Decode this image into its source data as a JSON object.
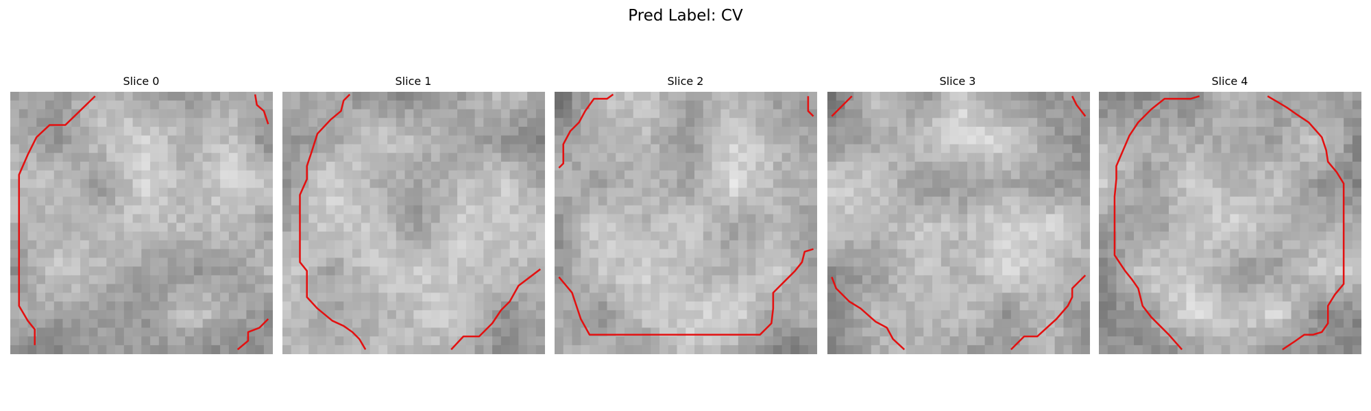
{
  "title": "Pred Label: CV",
  "slices": [
    "Slice 0",
    "Slice 1",
    "Slice 2",
    "Slice 3",
    "Slice 4"
  ]
}
